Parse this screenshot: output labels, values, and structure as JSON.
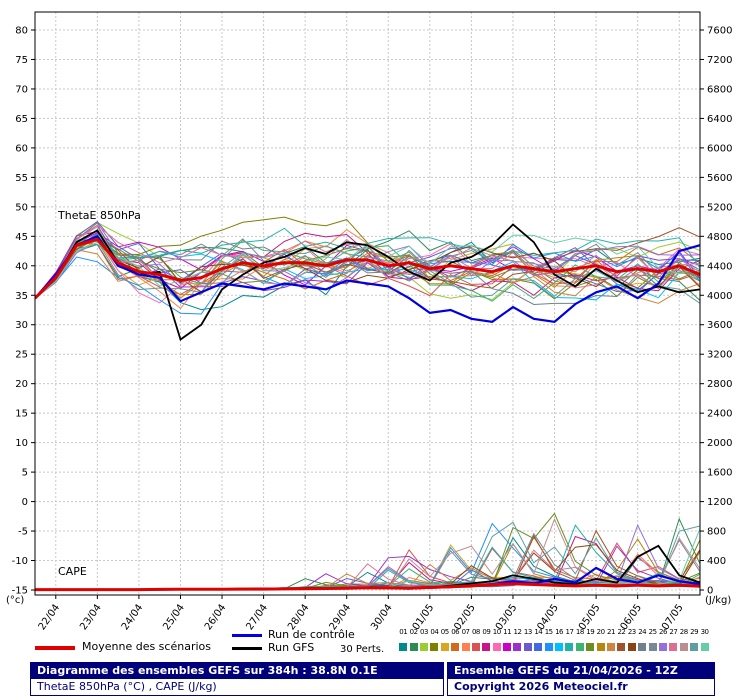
{
  "chart_data": {
    "type": "line",
    "title": "Diagramme des ensembles GEFS sur 384h : 38.8N 0.1E",
    "subtitle": "ThetaE 850hPa (°C) , CAPE (J/kg)",
    "annotations": {
      "thetae_label": "ThetaE 850hPa",
      "cape_label": "CAPE"
    },
    "x_axis": {
      "day_labels": [
        "22/04",
        "23/04",
        "24/04",
        "25/04",
        "26/04",
        "27/04",
        "28/04",
        "29/04",
        "30/04",
        "01/05",
        "02/05",
        "03/05",
        "04/05",
        "05/05",
        "06/05",
        "07/05"
      ],
      "first_tick_hour": 12,
      "tick_interval_hours": 24,
      "total_hours": 384,
      "step_hours": 12
    },
    "left_axis": {
      "min": -15,
      "max": 80,
      "step": 5,
      "unit": "(°c)"
    },
    "right_axis": {
      "min": 0,
      "max": 7600,
      "step": 400,
      "unit": "(J/kg)"
    },
    "grid": true,
    "series": {
      "mean": {
        "label": "Moyenne des scénarios",
        "color": "#e10000",
        "width": 3,
        "thetae": [
          34.5,
          38,
          43.5,
          44.5,
          40.5,
          39,
          38.5,
          37.5,
          38,
          39.5,
          40.5,
          40,
          40.5,
          40.5,
          40,
          41,
          41,
          40,
          40.5,
          39.5,
          40,
          39.5,
          39,
          40,
          39.5,
          39,
          39.5,
          40,
          39,
          39.5,
          39,
          40,
          38.5
        ],
        "cape": [
          5,
          5,
          5,
          5,
          5,
          5,
          8,
          10,
          10,
          10,
          12,
          12,
          15,
          18,
          20,
          25,
          30,
          28,
          25,
          35,
          45,
          55,
          70,
          85,
          75,
          65,
          55,
          65,
          55,
          65,
          55,
          65,
          50
        ]
      },
      "control": {
        "label": "Run de contrôle",
        "color": "#0000e1",
        "width": 2.2,
        "thetae": [
          34.5,
          38.5,
          43.5,
          45,
          40,
          38.5,
          38,
          34,
          35.5,
          37,
          36.5,
          36,
          37,
          36.5,
          36,
          37.5,
          37,
          36.5,
          34.5,
          32,
          32.5,
          31,
          30.5,
          33,
          31,
          30.5,
          33.5,
          35.5,
          36.5,
          34.5,
          37,
          42.5,
          43.5
        ],
        "cape": [
          5,
          5,
          5,
          5,
          5,
          5,
          5,
          10,
          10,
          10,
          10,
          15,
          15,
          20,
          20,
          25,
          30,
          25,
          20,
          30,
          40,
          60,
          80,
          120,
          90,
          150,
          100,
          300,
          150,
          100,
          200,
          120,
          80
        ]
      },
      "gfs": {
        "label": "Run GFS",
        "color": "#000000",
        "width": 1.8,
        "thetae": [
          34.5,
          38,
          44,
          46,
          40.5,
          38.5,
          39,
          27.5,
          30,
          36,
          38.5,
          40.5,
          41.5,
          43,
          42,
          44,
          43.5,
          41.5,
          39,
          37.5,
          40.5,
          41.5,
          43.5,
          47,
          44,
          38.5,
          36.5,
          39.5,
          37.5,
          35.5,
          36.5,
          35.5,
          36
        ],
        "cape": [
          5,
          5,
          5,
          5,
          5,
          5,
          10,
          10,
          10,
          15,
          15,
          20,
          20,
          25,
          30,
          30,
          35,
          30,
          25,
          40,
          60,
          90,
          120,
          200,
          150,
          100,
          80,
          150,
          100,
          450,
          600,
          200,
          100
        ]
      }
    },
    "members": {
      "count": 30,
      "label": "30 Perts.",
      "ids": [
        "01",
        "02",
        "03",
        "04",
        "05",
        "06",
        "07",
        "08",
        "09",
        "10",
        "11",
        "12",
        "13",
        "14",
        "15",
        "16",
        "17",
        "18",
        "19",
        "20",
        "21",
        "22",
        "23",
        "24",
        "25",
        "26",
        "27",
        "28",
        "29",
        "30"
      ],
      "colors": [
        "#008b8b",
        "#2e8b57",
        "#9acd32",
        "#808000",
        "#daa520",
        "#d2691e",
        "#ff7f50",
        "#dc5050",
        "#c71585",
        "#ff69b4",
        "#cc00cc",
        "#9932cc",
        "#6a5acd",
        "#4169e1",
        "#1e90ff",
        "#00bfff",
        "#20b2aa",
        "#3cb371",
        "#6b8e23",
        "#b8860b",
        "#cd853f",
        "#a0522d",
        "#8b4513",
        "#708090",
        "#778899",
        "#9370db",
        "#db7093",
        "#bc8f8f",
        "#5f9ea0",
        "#66cdaa"
      ],
      "seed": 7,
      "walk_decay": 0.72,
      "walk_step": 3.6,
      "amp": 1.6,
      "cape_spike_max": 900
    }
  },
  "legend": {
    "mean_label": "Moyenne des scénarios",
    "control_label": "Run de contrôle",
    "gfs_label": "Run GFS",
    "perts_label": "30 Perts."
  },
  "footer": {
    "left": {
      "line1": "Diagramme des ensembles GEFS sur 384h : 38.8N 0.1E",
      "line2": "ThetaE 850hPa (°C) , CAPE (J/kg)"
    },
    "right": {
      "line1": "Ensemble GEFS du 21/04/2026 - 12Z",
      "line2": "Copyright 2026 Meteociel.fr"
    }
  }
}
